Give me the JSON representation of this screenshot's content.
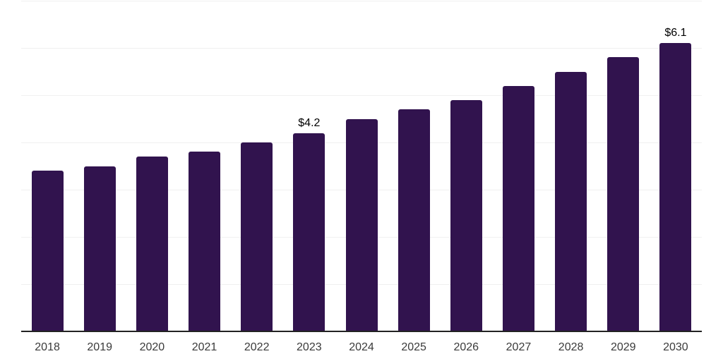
{
  "chart_data": {
    "type": "bar",
    "title": "",
    "xlabel": "",
    "ylabel": "",
    "categories": [
      "2018",
      "2019",
      "2020",
      "2021",
      "2022",
      "2023",
      "2024",
      "2025",
      "2026",
      "2027",
      "2028",
      "2029",
      "2030"
    ],
    "values": [
      3.4,
      3.5,
      3.7,
      3.8,
      4.0,
      4.2,
      4.5,
      4.7,
      4.9,
      5.2,
      5.5,
      5.8,
      6.1
    ],
    "annotations": [
      {
        "category": "2023",
        "text": "$4.2"
      },
      {
        "category": "2030",
        "text": "$6.1"
      }
    ],
    "ylim": [
      0,
      7
    ],
    "gridline_step": 1,
    "grid": "horizontal",
    "legend": "none",
    "y_axis_labels_visible": false,
    "colors": {
      "bar": "#31134E",
      "gridline": "#F0F0F0",
      "axis_line": "#222222",
      "tick_label": "#3A3A3A",
      "data_label": "#000000",
      "background": "#FFFFFF"
    }
  }
}
